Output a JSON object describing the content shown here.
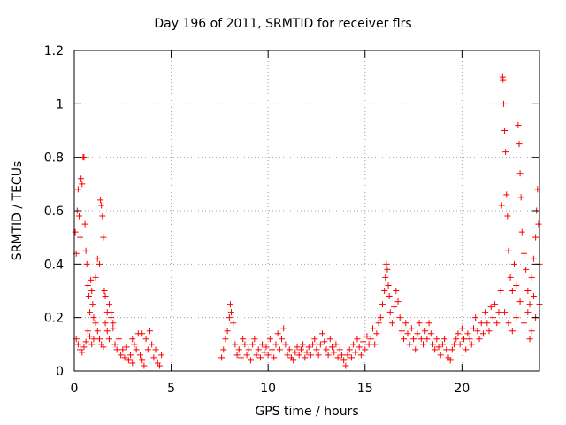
{
  "chart_data": {
    "type": "scatter",
    "title": "Day 196 of 2011, SRMTID for receiver flrs",
    "xlabel": "GPS time / hours",
    "ylabel": "SRMTID / TECUs",
    "xlim": [
      0,
      24
    ],
    "ylim": [
      0,
      1.2
    ],
    "xticks": [
      0,
      5,
      10,
      15,
      20
    ],
    "xtick_labels": [
      "0",
      "5",
      "10",
      "15",
      "20"
    ],
    "yticks": [
      0,
      0.2,
      0.4,
      0.6,
      0.8,
      1.0,
      1.2
    ],
    "ytick_labels": [
      "0",
      "0.2",
      "0.4",
      "0.6",
      "0.8",
      "1",
      "1.2"
    ],
    "grid": true,
    "marker": "+",
    "color": "#ff0000",
    "series": [
      {
        "name": "SRMTID",
        "points": [
          [
            0.05,
            0.52
          ],
          [
            0.1,
            0.44
          ],
          [
            0.15,
            0.6
          ],
          [
            0.2,
            0.68
          ],
          [
            0.25,
            0.58
          ],
          [
            0.3,
            0.5
          ],
          [
            0.35,
            0.72
          ],
          [
            0.4,
            0.7
          ],
          [
            0.45,
            0.8
          ],
          [
            0.5,
            0.8
          ],
          [
            0.55,
            0.55
          ],
          [
            0.6,
            0.45
          ],
          [
            0.65,
            0.4
          ],
          [
            0.7,
            0.32
          ],
          [
            0.75,
            0.28
          ],
          [
            0.8,
            0.22
          ],
          [
            0.85,
            0.34
          ],
          [
            0.9,
            0.3
          ],
          [
            0.95,
            0.25
          ],
          [
            1.0,
            0.2
          ],
          [
            0.1,
            0.12
          ],
          [
            0.2,
            0.1
          ],
          [
            0.3,
            0.08
          ],
          [
            0.4,
            0.07
          ],
          [
            0.5,
            0.09
          ],
          [
            0.6,
            0.11
          ],
          [
            0.7,
            0.15
          ],
          [
            0.8,
            0.13
          ],
          [
            0.9,
            0.1
          ],
          [
            1.0,
            0.12
          ],
          [
            1.1,
            0.35
          ],
          [
            1.2,
            0.42
          ],
          [
            1.3,
            0.4
          ],
          [
            1.35,
            0.64
          ],
          [
            1.4,
            0.62
          ],
          [
            1.45,
            0.58
          ],
          [
            1.5,
            0.5
          ],
          [
            1.55,
            0.3
          ],
          [
            1.6,
            0.28
          ],
          [
            1.7,
            0.22
          ],
          [
            1.1,
            0.18
          ],
          [
            1.2,
            0.15
          ],
          [
            1.3,
            0.12
          ],
          [
            1.4,
            0.1
          ],
          [
            1.5,
            0.09
          ],
          [
            1.6,
            0.18
          ],
          [
            1.7,
            0.15
          ],
          [
            1.8,
            0.12
          ],
          [
            1.9,
            0.2
          ],
          [
            2.0,
            0.16
          ],
          [
            1.8,
            0.25
          ],
          [
            1.9,
            0.22
          ],
          [
            2.0,
            0.18
          ],
          [
            2.1,
            0.1
          ],
          [
            2.2,
            0.08
          ],
          [
            2.3,
            0.12
          ],
          [
            2.4,
            0.06
          ],
          [
            2.5,
            0.08
          ],
          [
            2.6,
            0.05
          ],
          [
            2.7,
            0.09
          ],
          [
            2.8,
            0.04
          ],
          [
            2.9,
            0.06
          ],
          [
            3.0,
            0.03
          ],
          [
            3.1,
            0.1
          ],
          [
            3.2,
            0.08
          ],
          [
            3.3,
            0.14
          ],
          [
            3.4,
            0.06
          ],
          [
            3.5,
            0.04
          ],
          [
            3.6,
            0.02
          ],
          [
            3.7,
            0.12
          ],
          [
            3.8,
            0.08
          ],
          [
            3.9,
            0.15
          ],
          [
            4.0,
            0.1
          ],
          [
            4.1,
            0.05
          ],
          [
            4.2,
            0.08
          ],
          [
            4.3,
            0.03
          ],
          [
            4.4,
            0.02
          ],
          [
            4.5,
            0.06
          ],
          [
            3.0,
            0.12
          ],
          [
            3.5,
            0.14
          ],
          [
            7.6,
            0.05
          ],
          [
            7.7,
            0.08
          ],
          [
            7.8,
            0.12
          ],
          [
            7.9,
            0.15
          ],
          [
            8.0,
            0.2
          ],
          [
            8.05,
            0.25
          ],
          [
            8.1,
            0.22
          ],
          [
            8.2,
            0.18
          ],
          [
            8.3,
            0.1
          ],
          [
            8.4,
            0.06
          ],
          [
            8.5,
            0.08
          ],
          [
            8.6,
            0.05
          ],
          [
            8.7,
            0.12
          ],
          [
            8.8,
            0.1
          ],
          [
            8.9,
            0.06
          ],
          [
            9.0,
            0.08
          ],
          [
            9.1,
            0.04
          ],
          [
            9.2,
            0.1
          ],
          [
            9.3,
            0.12
          ],
          [
            9.4,
            0.06
          ],
          [
            9.5,
            0.08
          ],
          [
            9.6,
            0.05
          ],
          [
            9.7,
            0.1
          ],
          [
            9.8,
            0.07
          ],
          [
            9.9,
            0.09
          ],
          [
            10.0,
            0.06
          ],
          [
            10.1,
            0.12
          ],
          [
            10.2,
            0.08
          ],
          [
            10.3,
            0.05
          ],
          [
            10.4,
            0.1
          ],
          [
            10.5,
            0.14
          ],
          [
            10.6,
            0.08
          ],
          [
            10.7,
            0.12
          ],
          [
            10.8,
            0.16
          ],
          [
            10.9,
            0.1
          ],
          [
            11.0,
            0.06
          ],
          [
            11.1,
            0.08
          ],
          [
            11.2,
            0.05
          ],
          [
            11.3,
            0.04
          ],
          [
            11.4,
            0.07
          ],
          [
            11.5,
            0.09
          ],
          [
            11.6,
            0.06
          ],
          [
            11.7,
            0.08
          ],
          [
            11.8,
            0.1
          ],
          [
            11.9,
            0.05
          ],
          [
            12.0,
            0.07
          ],
          [
            12.1,
            0.09
          ],
          [
            12.2,
            0.06
          ],
          [
            12.3,
            0.1
          ],
          [
            12.4,
            0.12
          ],
          [
            12.5,
            0.08
          ],
          [
            12.6,
            0.06
          ],
          [
            12.7,
            0.1
          ],
          [
            12.8,
            0.14
          ],
          [
            12.9,
            0.11
          ],
          [
            13.0,
            0.08
          ],
          [
            13.1,
            0.06
          ],
          [
            13.2,
            0.12
          ],
          [
            13.3,
            0.09
          ],
          [
            13.4,
            0.07
          ],
          [
            13.5,
            0.1
          ],
          [
            13.6,
            0.05
          ],
          [
            13.7,
            0.08
          ],
          [
            13.8,
            0.06
          ],
          [
            13.9,
            0.04
          ],
          [
            14.0,
            0.02
          ],
          [
            14.1,
            0.06
          ],
          [
            14.2,
            0.08
          ],
          [
            14.3,
            0.05
          ],
          [
            14.4,
            0.1
          ],
          [
            14.5,
            0.07
          ],
          [
            14.6,
            0.12
          ],
          [
            14.7,
            0.09
          ],
          [
            14.8,
            0.06
          ],
          [
            14.9,
            0.11
          ],
          [
            15.0,
            0.08
          ],
          [
            15.1,
            0.13
          ],
          [
            15.2,
            0.1
          ],
          [
            15.3,
            0.12
          ],
          [
            15.4,
            0.16
          ],
          [
            15.5,
            0.1
          ],
          [
            15.6,
            0.14
          ],
          [
            15.7,
            0.18
          ],
          [
            15.8,
            0.2
          ],
          [
            15.9,
            0.25
          ],
          [
            16.0,
            0.3
          ],
          [
            16.05,
            0.35
          ],
          [
            16.1,
            0.4
          ],
          [
            16.15,
            0.38
          ],
          [
            16.2,
            0.32
          ],
          [
            16.25,
            0.28
          ],
          [
            16.3,
            0.22
          ],
          [
            16.4,
            0.18
          ],
          [
            16.5,
            0.24
          ],
          [
            16.6,
            0.3
          ],
          [
            16.7,
            0.26
          ],
          [
            16.8,
            0.2
          ],
          [
            16.9,
            0.15
          ],
          [
            17.0,
            0.12
          ],
          [
            17.1,
            0.18
          ],
          [
            17.2,
            0.14
          ],
          [
            17.3,
            0.1
          ],
          [
            17.4,
            0.16
          ],
          [
            17.5,
            0.12
          ],
          [
            17.6,
            0.08
          ],
          [
            17.7,
            0.14
          ],
          [
            17.8,
            0.18
          ],
          [
            17.9,
            0.12
          ],
          [
            18.0,
            0.1
          ],
          [
            18.1,
            0.15
          ],
          [
            18.2,
            0.12
          ],
          [
            18.3,
            0.18
          ],
          [
            18.4,
            0.14
          ],
          [
            18.5,
            0.1
          ],
          [
            18.6,
            0.08
          ],
          [
            18.7,
            0.12
          ],
          [
            18.8,
            0.09
          ],
          [
            18.9,
            0.06
          ],
          [
            19.0,
            0.1
          ],
          [
            19.1,
            0.12
          ],
          [
            19.2,
            0.08
          ],
          [
            19.3,
            0.05
          ],
          [
            19.4,
            0.04
          ],
          [
            19.5,
            0.08
          ],
          [
            19.6,
            0.1
          ],
          [
            19.7,
            0.12
          ],
          [
            19.8,
            0.14
          ],
          [
            19.9,
            0.1
          ],
          [
            20.0,
            0.16
          ],
          [
            20.1,
            0.12
          ],
          [
            20.2,
            0.08
          ],
          [
            20.3,
            0.14
          ],
          [
            20.4,
            0.12
          ],
          [
            20.5,
            0.1
          ],
          [
            20.6,
            0.16
          ],
          [
            20.7,
            0.2
          ],
          [
            20.8,
            0.15
          ],
          [
            20.9,
            0.12
          ],
          [
            21.0,
            0.18
          ],
          [
            21.1,
            0.14
          ],
          [
            21.2,
            0.22
          ],
          [
            21.3,
            0.18
          ],
          [
            21.4,
            0.15
          ],
          [
            21.5,
            0.24
          ],
          [
            21.6,
            0.2
          ],
          [
            21.7,
            0.25
          ],
          [
            21.8,
            0.18
          ],
          [
            21.9,
            0.22
          ],
          [
            22.0,
            0.3
          ],
          [
            22.05,
            0.62
          ],
          [
            22.1,
            1.1
          ],
          [
            22.12,
            1.09
          ],
          [
            22.15,
            1.0
          ],
          [
            22.2,
            0.9
          ],
          [
            22.25,
            0.82
          ],
          [
            22.3,
            0.66
          ],
          [
            22.35,
            0.58
          ],
          [
            22.4,
            0.45
          ],
          [
            22.5,
            0.35
          ],
          [
            22.6,
            0.3
          ],
          [
            22.7,
            0.4
          ],
          [
            22.8,
            0.32
          ],
          [
            22.9,
            0.92
          ],
          [
            22.95,
            0.85
          ],
          [
            23.0,
            0.74
          ],
          [
            23.05,
            0.65
          ],
          [
            23.1,
            0.52
          ],
          [
            23.2,
            0.44
          ],
          [
            23.3,
            0.38
          ],
          [
            23.4,
            0.3
          ],
          [
            23.5,
            0.25
          ],
          [
            23.6,
            0.35
          ],
          [
            23.7,
            0.42
          ],
          [
            23.8,
            0.5
          ],
          [
            23.85,
            0.6
          ],
          [
            23.9,
            0.68
          ],
          [
            23.95,
            0.55
          ],
          [
            24.0,
            0.4
          ],
          [
            22.2,
            0.22
          ],
          [
            22.4,
            0.18
          ],
          [
            22.6,
            0.15
          ],
          [
            22.8,
            0.2
          ],
          [
            23.0,
            0.26
          ],
          [
            23.2,
            0.18
          ],
          [
            23.4,
            0.22
          ],
          [
            23.6,
            0.15
          ],
          [
            23.8,
            0.2
          ],
          [
            24.0,
            0.25
          ],
          [
            23.5,
            0.12
          ],
          [
            23.7,
            0.28
          ]
        ]
      }
    ]
  }
}
